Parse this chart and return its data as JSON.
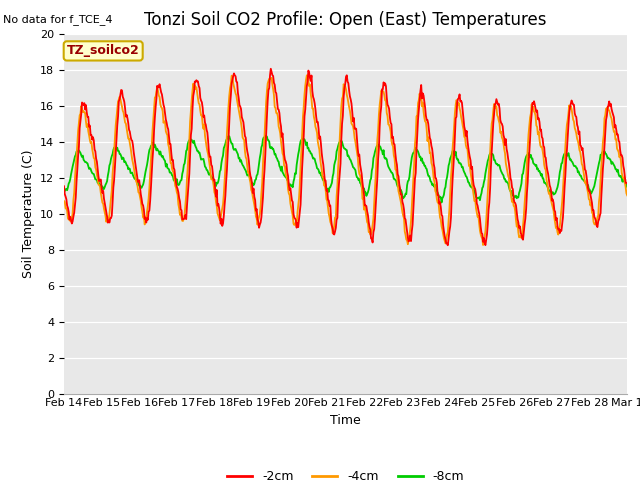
{
  "title": "Tonzi Soil CO2 Profile: Open (East) Temperatures",
  "no_data_text": "No data for f_TCE_4",
  "ylabel": "Soil Temperature (C)",
  "xlabel": "Time",
  "legend_label": "TZ_soilco2",
  "ylim": [
    0,
    20
  ],
  "yticks": [
    0,
    2,
    4,
    6,
    8,
    10,
    12,
    14,
    16,
    18,
    20
  ],
  "bg_color": "#e8e8e8",
  "fig_color": "#ffffff",
  "line_colors": {
    "2cm": "#ff0000",
    "4cm": "#ff9900",
    "8cm": "#00cc00"
  },
  "line_labels": {
    "2cm": "-2cm",
    "4cm": "-4cm",
    "8cm": "-8cm"
  },
  "x_tick_labels": [
    "Feb 14",
    "Feb 15",
    "Feb 16",
    "Feb 17",
    "Feb 18",
    "Feb 19",
    "Feb 20",
    "Feb 21",
    "Feb 22",
    "Feb 23",
    "Feb 24",
    "Feb 25",
    "Feb 26",
    "Feb 27",
    "Feb 28",
    "Mar 1"
  ],
  "num_days": 15.0,
  "annotation_box_color": "#ffffcc",
  "annotation_box_edge": "#ccaa00",
  "annotation_text_color": "#990000",
  "title_fontsize": 12,
  "label_fontsize": 9,
  "tick_fontsize": 8,
  "legend_label_fontsize": 9
}
